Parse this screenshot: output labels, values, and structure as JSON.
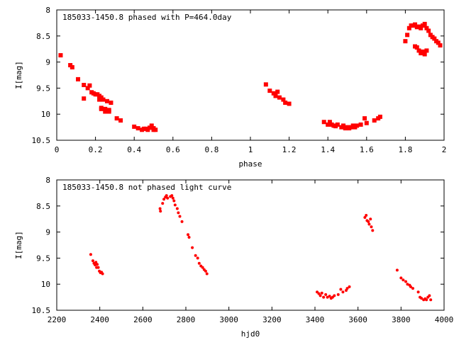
{
  "colors": {
    "points": "#ff0000",
    "axes": "#000000",
    "background": "#ffffff"
  },
  "chart_data": [
    {
      "type": "scatter",
      "title": "185033-1450.8 phased with P=464.0day",
      "xlabel": "phase",
      "ylabel": "I[mag]",
      "xlim": [
        0,
        2
      ],
      "ylim": [
        10.5,
        8
      ],
      "y_inverted": true,
      "grid": false,
      "legend": "none",
      "marker": "filled-square",
      "xticks": [
        "0",
        "0.2",
        "0.4",
        "0.6",
        "0.8",
        "1",
        "1.2",
        "1.4",
        "1.6",
        "1.8",
        "2"
      ],
      "yticks": [
        "8",
        "8.5",
        "9",
        "9.5",
        "10",
        "10.5"
      ],
      "series": [
        {
          "x": [
            0.02,
            0.07,
            0.08,
            0.11,
            0.14,
            0.14,
            0.16,
            0.17,
            0.18,
            0.19,
            0.2,
            0.21,
            0.22,
            0.22,
            0.23,
            0.23,
            0.24,
            0.25,
            0.26,
            0.27,
            0.28,
            0.23,
            0.25,
            0.27,
            0.31,
            0.33,
            0.4,
            0.42,
            0.44,
            0.45,
            0.46,
            0.47,
            0.48,
            0.49,
            0.5,
            0.5,
            0.51,
            1.08,
            1.1,
            1.12,
            1.13,
            1.14,
            1.15,
            1.17,
            1.18,
            1.2,
            1.38,
            1.4,
            1.41,
            1.42,
            1.43,
            1.44,
            1.45,
            1.47,
            1.48,
            1.49,
            1.5,
            1.51,
            1.52,
            1.53,
            1.54,
            1.55,
            1.57,
            1.59,
            1.6,
            1.64,
            1.66,
            1.67,
            1.8,
            1.81,
            1.82,
            1.83,
            1.84,
            1.85,
            1.86,
            1.87,
            1.88,
            1.89,
            1.9,
            1.91,
            1.92,
            1.93,
            1.94,
            1.95,
            1.96,
            1.97,
            1.98,
            1.85,
            1.86,
            1.87,
            1.88,
            1.89,
            1.9,
            1.91
          ],
          "y": [
            8.87,
            9.06,
            9.1,
            9.33,
            9.44,
            9.7,
            9.5,
            9.45,
            9.58,
            9.6,
            9.62,
            9.62,
            9.65,
            9.72,
            9.68,
            9.88,
            9.72,
            9.9,
            9.75,
            9.92,
            9.78,
            9.9,
            9.95,
            9.95,
            10.08,
            10.12,
            10.24,
            10.27,
            10.3,
            10.28,
            10.28,
            10.3,
            10.26,
            10.22,
            10.27,
            10.3,
            10.3,
            9.43,
            9.55,
            9.6,
            9.65,
            9.57,
            9.68,
            9.72,
            9.78,
            9.8,
            10.15,
            10.2,
            10.15,
            10.2,
            10.22,
            10.23,
            10.2,
            10.25,
            10.22,
            10.27,
            10.25,
            10.27,
            10.25,
            10.22,
            10.25,
            10.22,
            10.2,
            10.08,
            10.17,
            10.12,
            10.08,
            10.05,
            8.6,
            8.48,
            8.35,
            8.3,
            8.3,
            8.28,
            8.33,
            8.32,
            8.35,
            8.3,
            8.27,
            8.35,
            8.4,
            8.48,
            8.52,
            8.55,
            8.6,
            8.63,
            8.68,
            8.7,
            8.72,
            8.78,
            8.83,
            8.8,
            8.85,
            8.78
          ]
        }
      ]
    },
    {
      "type": "scatter",
      "title": "185033-1450.8 not phased light curve",
      "xlabel": "hjd0",
      "ylabel": "I[mag]",
      "xlim": [
        2200,
        4000
      ],
      "ylim": [
        10.5,
        8
      ],
      "y_inverted": true,
      "grid": false,
      "legend": "none",
      "marker": "small-dot",
      "xticks": [
        "2200",
        "2400",
        "2600",
        "2800",
        "3000",
        "3200",
        "3400",
        "3600",
        "3800",
        "4000"
      ],
      "yticks": [
        "8",
        "8.5",
        "9",
        "9.5",
        "10",
        "10.5"
      ],
      "series": [
        {
          "x": [
            2358,
            2368,
            2373,
            2378,
            2382,
            2385,
            2388,
            2393,
            2398,
            2403,
            2408,
            2413,
            2680,
            2682,
            2692,
            2698,
            2705,
            2710,
            2715,
            2728,
            2735,
            2740,
            2745,
            2750,
            2760,
            2765,
            2772,
            2782,
            2810,
            2815,
            2830,
            2845,
            2855,
            2862,
            2870,
            2878,
            2885,
            2892,
            2898,
            3410,
            3418,
            3425,
            3432,
            3440,
            3450,
            3458,
            3468,
            3475,
            3482,
            3490,
            3508,
            3520,
            3530,
            3545,
            3550,
            3560,
            3632,
            3638,
            3642,
            3648,
            3652,
            3658,
            3662,
            3668,
            3782,
            3800,
            3810,
            3822,
            3830,
            3840,
            3845,
            3855,
            3880,
            3888,
            3895,
            3905,
            3912,
            3918,
            3925,
            3932,
            3938
          ],
          "y": [
            9.43,
            9.55,
            9.6,
            9.63,
            9.58,
            9.68,
            9.62,
            9.68,
            9.75,
            9.78,
            9.77,
            9.8,
            8.55,
            8.6,
            8.45,
            8.37,
            8.33,
            8.3,
            8.35,
            8.32,
            8.3,
            8.35,
            8.4,
            8.48,
            8.55,
            8.63,
            8.7,
            8.8,
            9.05,
            9.1,
            9.3,
            9.45,
            9.5,
            9.6,
            9.65,
            9.68,
            9.72,
            9.75,
            9.8,
            10.15,
            10.18,
            10.22,
            10.17,
            10.25,
            10.2,
            10.25,
            10.23,
            10.27,
            10.25,
            10.22,
            10.2,
            10.1,
            10.15,
            10.12,
            10.08,
            10.05,
            8.72,
            8.68,
            8.78,
            8.8,
            8.85,
            8.75,
            8.9,
            8.97,
            9.73,
            9.88,
            9.92,
            9.95,
            10.0,
            10.02,
            10.05,
            10.08,
            10.15,
            10.25,
            10.27,
            10.3,
            10.28,
            10.3,
            10.25,
            10.22,
            10.3
          ]
        }
      ]
    }
  ]
}
